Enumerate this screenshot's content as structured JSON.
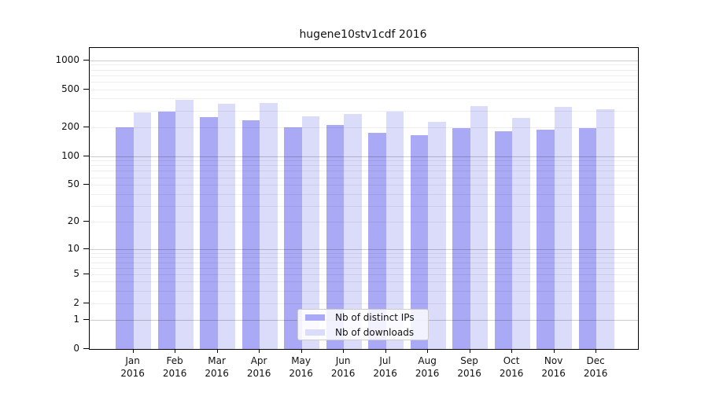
{
  "title": "hugene10stv1cdf 2016",
  "chart_data": {
    "type": "bar",
    "title": "hugene10stv1cdf 2016",
    "categories": [
      "Jan",
      "Feb",
      "Mar",
      "Apr",
      "May",
      "Jun",
      "Jul",
      "Aug",
      "Sep",
      "Oct",
      "Nov",
      "Dec"
    ],
    "year_label": "2016",
    "series": [
      {
        "name": "Nb of distinct IPs",
        "color": "#a9a9f5",
        "values": [
          200,
          290,
          256,
          238,
          202,
          214,
          174,
          166,
          195,
          181,
          189,
          197
        ]
      },
      {
        "name": "Nb of downloads",
        "color": "#dbdbfa",
        "values": [
          285,
          385,
          356,
          363,
          263,
          276,
          294,
          229,
          332,
          250,
          327,
          308
        ]
      }
    ],
    "xlabel": "",
    "ylabel": "",
    "y_ticks": [
      0,
      1,
      2,
      5,
      10,
      20,
      50,
      100,
      200,
      500,
      1000
    ],
    "y_scale": "log10(1+x)",
    "ylim": [
      0,
      1070
    ],
    "grid": "on",
    "grid_minor_steps": [
      2,
      3,
      4,
      5,
      6,
      7,
      8,
      9,
      20,
      30,
      40,
      50,
      60,
      70,
      80,
      90,
      200,
      300,
      400,
      500,
      600,
      700,
      800,
      900
    ],
    "grid_major_steps": [
      1,
      10,
      100,
      1000
    ],
    "legend_position": "bottom-center"
  }
}
